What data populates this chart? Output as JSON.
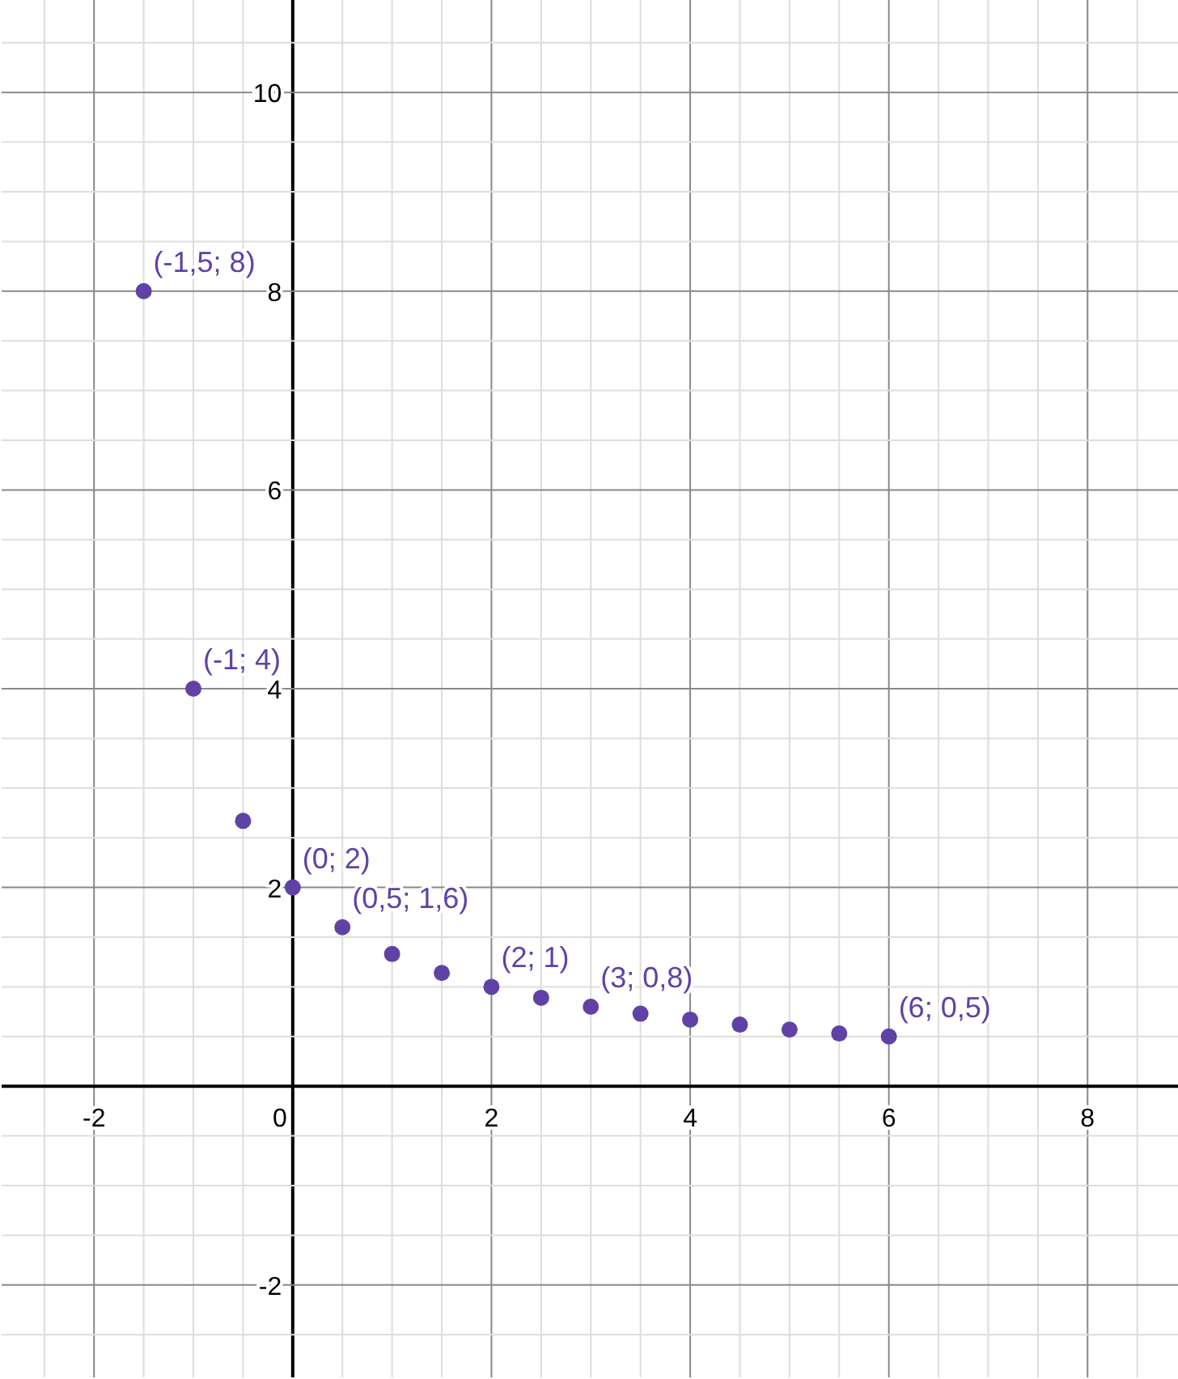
{
  "chart_data": {
    "type": "scatter",
    "x": [
      -1.5,
      -1,
      -0.5,
      0,
      0.5,
      1,
      1.5,
      2,
      2.5,
      3,
      3.5,
      4,
      4.5,
      5,
      5.5,
      6
    ],
    "series": [
      {
        "color": "#6042a6",
        "values": [
          8,
          4,
          2.67,
          2,
          1.6,
          1.33,
          1.14,
          1,
          0.89,
          0.8,
          0.73,
          0.67,
          0.62,
          0.57,
          0.53,
          0.5
        ],
        "value_labels": [
          "(-1,5; 8)",
          "(-1; 4)",
          null,
          "(0; 2)",
          "(0,5; 1,6)",
          null,
          null,
          "(2; 1)",
          null,
          "(3; 0,8)",
          null,
          null,
          null,
          null,
          null,
          "(6; 0,5)"
        ]
      }
    ],
    "xlim": [
      -2.93,
      8.91
    ],
    "ylim": [
      -2.93,
      10.93
    ],
    "xticks": [
      {
        "value": -2.5,
        "label": null
      },
      -2,
      {
        "value": -1.5,
        "label": null
      },
      {
        "value": -1,
        "label": null
      },
      {
        "value": -0.5,
        "label": null
      },
      0,
      {
        "value": 0.5,
        "label": null
      },
      {
        "value": 1,
        "label": null
      },
      {
        "value": 1.5,
        "label": null
      },
      2,
      {
        "value": 2.5,
        "label": null
      },
      {
        "value": 3,
        "label": null
      },
      {
        "value": 3.5,
        "label": null
      },
      4,
      {
        "value": 4.5,
        "label": null
      },
      {
        "value": 5,
        "label": null
      },
      {
        "value": 5.5,
        "label": null
      },
      6,
      {
        "value": 6.5,
        "label": null
      },
      {
        "value": 7,
        "label": null
      },
      {
        "value": 7.5,
        "label": null
      },
      8,
      {
        "value": 8.5,
        "label": null
      }
    ],
    "yticks": [
      {
        "value": -2.5,
        "label": null
      },
      -2,
      {
        "value": -1.5,
        "label": null
      },
      {
        "value": -1,
        "label": null
      },
      {
        "value": -0.5,
        "label": null
      },
      {
        "value": 0,
        "label": null
      },
      {
        "value": 0.5,
        "label": null
      },
      {
        "value": 1,
        "label": null
      },
      {
        "value": 1.5,
        "label": null
      },
      2,
      {
        "value": 2.5,
        "label": null
      },
      {
        "value": 3,
        "label": null
      },
      {
        "value": 3.5,
        "label": null
      },
      4,
      {
        "value": 4.5,
        "label": null
      },
      {
        "value": 5,
        "label": null
      },
      {
        "value": 5.5,
        "label": null
      },
      6,
      {
        "value": 6.5,
        "label": null
      },
      {
        "value": 7,
        "label": null
      },
      {
        "value": 7.5,
        "label": null
      },
      8,
      {
        "value": 8.5,
        "label": null
      },
      {
        "value": 9,
        "label": null
      },
      {
        "value": 9.5,
        "label": null
      },
      10,
      {
        "value": 10.5,
        "label": null
      }
    ],
    "grid": true,
    "marker": "circle"
  }
}
